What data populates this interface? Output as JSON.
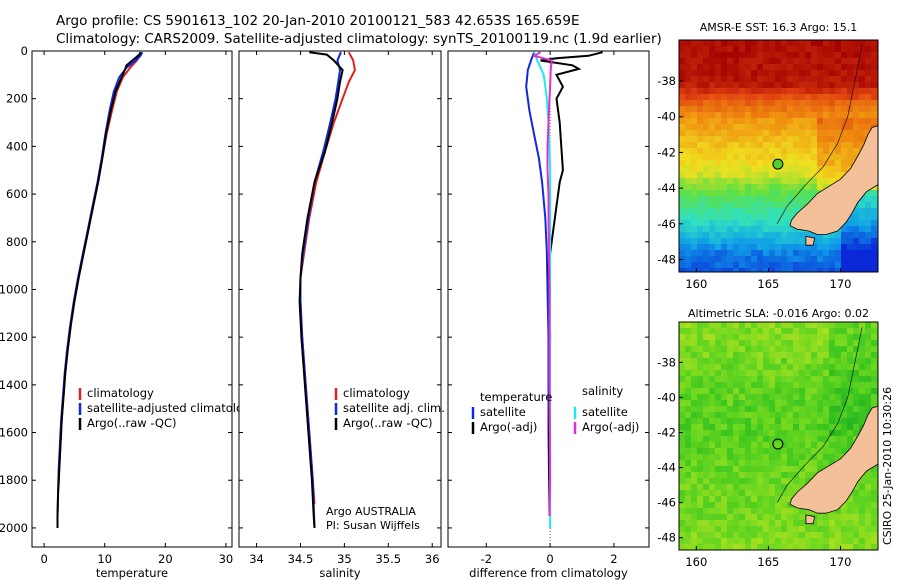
{
  "header": {
    "line1": "Argo profile: CS 5901613_102 20-Jan-2010 20100121_583 42.653S 165.659E",
    "line2": "Climatology: CARS2009. Satellite-adjusted climatology: synTS_20100119.nc (1.9d earlier)"
  },
  "credit": "CSIRO 25-Jan-2010 10:30:26",
  "colors": {
    "climatology": "#e02020",
    "satellite": "#1028e0",
    "argo": "#000000",
    "satellite_salinity": "#20e8f0",
    "argo_salinity": "#e030d0",
    "land": "#f4c09a"
  },
  "chart_data": [
    {
      "type": "line",
      "xlabel": "temperature",
      "ylim": [
        2080,
        0
      ],
      "xlim": [
        -2,
        31
      ],
      "xticks": [
        0,
        10,
        20,
        30
      ],
      "yticks": [
        0,
        200,
        400,
        600,
        800,
        1000,
        1200,
        1400,
        1600,
        1800,
        2000
      ],
      "legend": {
        "placement": "lower-right",
        "entries": [
          "climatology",
          "satellite-adjusted climatology",
          "Argo(..raw -QC)"
        ]
      },
      "series": [
        {
          "name": "climatology",
          "color": "#e02020",
          "points": [
            [
              16.0,
              5
            ],
            [
              15.8,
              20
            ],
            [
              15.3,
              40
            ],
            [
              14.2,
              70
            ],
            [
              13.0,
              110
            ],
            [
              12.0,
              170
            ],
            [
              11.2,
              250
            ],
            [
              10.3,
              350
            ],
            [
              9.6,
              450
            ],
            [
              8.9,
              550
            ],
            [
              8.1,
              650
            ],
            [
              7.3,
              750
            ],
            [
              6.5,
              850
            ],
            [
              5.7,
              950
            ],
            [
              5.0,
              1050
            ],
            [
              4.4,
              1150
            ],
            [
              3.9,
              1250
            ],
            [
              3.5,
              1350
            ],
            [
              3.2,
              1450
            ],
            [
              2.9,
              1550
            ],
            [
              2.7,
              1650
            ],
            [
              2.5,
              1750
            ],
            [
              2.4,
              1820
            ]
          ]
        },
        {
          "name": "satellite-adjusted climatology",
          "color": "#1028e0",
          "points": [
            [
              16.2,
              5
            ],
            [
              15.9,
              20
            ],
            [
              15.1,
              40
            ],
            [
              13.6,
              70
            ],
            [
              12.4,
              110
            ],
            [
              11.5,
              170
            ],
            [
              10.8,
              250
            ],
            [
              10.1,
              350
            ],
            [
              9.5,
              450
            ],
            [
              8.8,
              550
            ],
            [
              8.0,
              650
            ],
            [
              7.2,
              750
            ],
            [
              6.4,
              850
            ],
            [
              5.6,
              950
            ],
            [
              4.9,
              1050
            ],
            [
              4.3,
              1150
            ],
            [
              3.8,
              1250
            ],
            [
              3.4,
              1350
            ],
            [
              3.1,
              1450
            ],
            [
              2.8,
              1550
            ],
            [
              2.6,
              1650
            ],
            [
              2.4,
              1750
            ],
            [
              2.3,
              1850
            ],
            [
              2.2,
              1950
            ],
            [
              2.2,
              2000
            ]
          ]
        },
        {
          "name": "Argo(..raw -QC)",
          "color": "#000000",
          "points": [
            [
              15.9,
              5
            ],
            [
              15.7,
              15
            ],
            [
              14.8,
              35
            ],
            [
              13.6,
              60
            ],
            [
              13.4,
              75
            ],
            [
              12.8,
              110
            ],
            [
              11.8,
              170
            ],
            [
              11.0,
              250
            ],
            [
              10.2,
              350
            ],
            [
              9.6,
              450
            ],
            [
              8.9,
              550
            ],
            [
              8.1,
              650
            ],
            [
              7.3,
              750
            ],
            [
              6.5,
              850
            ],
            [
              5.7,
              950
            ],
            [
              5.0,
              1050
            ],
            [
              4.4,
              1150
            ],
            [
              3.9,
              1250
            ],
            [
              3.5,
              1350
            ],
            [
              3.2,
              1450
            ],
            [
              2.9,
              1550
            ],
            [
              2.7,
              1650
            ],
            [
              2.5,
              1750
            ],
            [
              2.3,
              1850
            ],
            [
              2.2,
              1950
            ],
            [
              2.2,
              2000
            ]
          ]
        }
      ]
    },
    {
      "type": "line",
      "xlabel": "salinity",
      "ylim": [
        2080,
        0
      ],
      "xlim": [
        33.8,
        36.1
      ],
      "xticks": [
        34,
        34.5,
        35,
        35.5,
        36
      ],
      "tick_labels": [
        "34",
        "34.5",
        "35",
        "35.5",
        "36"
      ],
      "legend": {
        "placement": "lower-right",
        "entries": [
          "climatology",
          "satellite adj. clim.",
          "Argo(..raw -QC)"
        ]
      },
      "annotation": [
        "Argo AUSTRALIA",
        "PI: Susan Wijffels"
      ],
      "series": [
        {
          "name": "climatology",
          "color": "#e02020",
          "points": [
            [
              35.05,
              5
            ],
            [
              35.1,
              40
            ],
            [
              35.12,
              80
            ],
            [
              35.05,
              130
            ],
            [
              34.98,
              200
            ],
            [
              34.88,
              300
            ],
            [
              34.78,
              420
            ],
            [
              34.68,
              550
            ],
            [
              34.6,
              700
            ],
            [
              34.54,
              850
            ],
            [
              34.5,
              950
            ],
            [
              34.5,
              1050
            ],
            [
              34.52,
              1200
            ],
            [
              34.56,
              1400
            ],
            [
              34.6,
              1600
            ],
            [
              34.64,
              1800
            ],
            [
              34.66,
              1900
            ]
          ]
        },
        {
          "name": "satellite adj. clim.",
          "color": "#1028e0",
          "points": [
            [
              34.96,
              5
            ],
            [
              34.92,
              40
            ],
            [
              34.95,
              80
            ],
            [
              34.93,
              130
            ],
            [
              34.9,
              200
            ],
            [
              34.84,
              300
            ],
            [
              34.76,
              420
            ],
            [
              34.66,
              550
            ],
            [
              34.59,
              700
            ],
            [
              34.53,
              850
            ],
            [
              34.5,
              950
            ],
            [
              34.5,
              1050
            ],
            [
              34.52,
              1200
            ],
            [
              34.56,
              1400
            ],
            [
              34.6,
              1600
            ],
            [
              34.64,
              1800
            ],
            [
              34.66,
              2000
            ]
          ]
        },
        {
          "name": "Argo(..raw -QC)",
          "color": "#000000",
          "points": [
            [
              34.6,
              5
            ],
            [
              34.8,
              15
            ],
            [
              34.88,
              40
            ],
            [
              34.98,
              80
            ],
            [
              34.95,
              130
            ],
            [
              34.92,
              200
            ],
            [
              34.86,
              300
            ],
            [
              34.78,
              420
            ],
            [
              34.66,
              550
            ],
            [
              34.58,
              700
            ],
            [
              34.52,
              850
            ],
            [
              34.5,
              950
            ],
            [
              34.49,
              1050
            ],
            [
              34.51,
              1200
            ],
            [
              34.55,
              1400
            ],
            [
              34.59,
              1600
            ],
            [
              34.63,
              1800
            ],
            [
              34.65,
              1950
            ],
            [
              34.66,
              2000
            ]
          ]
        }
      ]
    },
    {
      "type": "line",
      "xlabel": "difference from climatology",
      "ylim": [
        2080,
        0
      ],
      "xlim": [
        -3.2,
        3.1
      ],
      "xticks": [
        -2,
        0,
        2
      ],
      "legend": {
        "placement": "lower-center",
        "headers": [
          "temperature",
          "salinity"
        ],
        "entries": [
          "satellite",
          "Argo(-adj)",
          "satellite",
          "Argo(-adj)"
        ]
      },
      "series": [
        {
          "name": "temperature satellite",
          "color": "#1028e0",
          "points": [
            [
              -0.5,
              5
            ],
            [
              -0.6,
              40
            ],
            [
              -0.7,
              80
            ],
            [
              -0.75,
              150
            ],
            [
              -0.65,
              250
            ],
            [
              -0.5,
              350
            ],
            [
              -0.35,
              450
            ],
            [
              -0.25,
              550
            ],
            [
              -0.15,
              700
            ],
            [
              -0.1,
              850
            ],
            [
              -0.08,
              1000
            ],
            [
              -0.05,
              1200
            ],
            [
              -0.05,
              1400
            ],
            [
              -0.05,
              1600
            ],
            [
              -0.03,
              1800
            ],
            [
              -0.02,
              1950
            ]
          ]
        },
        {
          "name": "temperature Argo(-adj)",
          "color": "#000000",
          "points": [
            [
              1.65,
              5
            ],
            [
              1.2,
              20
            ],
            [
              0.2,
              30
            ],
            [
              -0.3,
              40
            ],
            [
              0.7,
              60
            ],
            [
              0.9,
              75
            ],
            [
              0.2,
              100
            ],
            [
              0.4,
              150
            ],
            [
              0.2,
              200
            ],
            [
              0.3,
              300
            ],
            [
              0.35,
              400
            ],
            [
              0.4,
              500
            ],
            [
              0.3,
              550
            ],
            [
              0.2,
              650
            ],
            [
              0.05,
              800
            ],
            [
              -0.05,
              900
            ],
            [
              -0.02,
              1000
            ],
            [
              0.0,
              1200
            ],
            [
              -0.02,
              1400
            ],
            [
              -0.03,
              1600
            ],
            [
              -0.02,
              1800
            ],
            [
              0.0,
              1950
            ]
          ]
        },
        {
          "name": "salinity satellite",
          "color": "#20e8f0",
          "points": [
            [
              -0.5,
              5
            ],
            [
              -0.4,
              40
            ],
            [
              -0.2,
              100
            ],
            [
              -0.1,
              200
            ],
            [
              -0.05,
              300
            ],
            [
              -0.02,
              400
            ],
            [
              0.0,
              500
            ],
            [
              0.0,
              600
            ],
            [
              0.0,
              800
            ],
            [
              0.0,
              1000
            ],
            [
              0.0,
              1200
            ],
            [
              0.0,
              1400
            ],
            [
              0.0,
              1600
            ],
            [
              0.0,
              1800
            ],
            [
              0.0,
              2000
            ]
          ]
        },
        {
          "name": "salinity Argo(-adj)",
          "color": "#e030d0",
          "points": [
            [
              -0.3,
              5
            ],
            [
              -0.5,
              20
            ],
            [
              0.05,
              40
            ],
            [
              0.02,
              80
            ],
            [
              0.0,
              150
            ],
            [
              -0.02,
              200
            ],
            [
              -0.05,
              300
            ],
            [
              -0.08,
              400
            ],
            [
              -0.08,
              500
            ],
            [
              -0.05,
              600
            ],
            [
              -0.05,
              700
            ],
            [
              -0.03,
              900
            ],
            [
              -0.02,
              1000
            ],
            [
              -0.02,
              1200
            ],
            [
              -0.02,
              1400
            ],
            [
              -0.01,
              1600
            ],
            [
              0.0,
              1800
            ],
            [
              -0.02,
              1950
            ]
          ]
        }
      ]
    },
    {
      "type": "heatmap",
      "title": "AMSR-E SST: 16.3 Argo: 15.1",
      "xlim": [
        158.8,
        172.6
      ],
      "ylim": [
        -48.7,
        -35.7
      ],
      "xticks": [
        160,
        165,
        170
      ],
      "yticks": [
        -38,
        -40,
        -42,
        -44,
        -46,
        -48
      ],
      "marker": [
        165.659,
        -42.653
      ],
      "colorscale": [
        "#0a28d8",
        "#10a0e8",
        "#30e0c0",
        "#60e040",
        "#f0e020",
        "#f09010",
        "#e04010",
        "#a00000"
      ],
      "fields": [
        {
          "y": -35.7,
          "value": 0.97
        },
        {
          "y": -38.0,
          "value": 0.95
        },
        {
          "y": -39.0,
          "value": 0.8
        },
        {
          "y": -40.0,
          "value": 0.7
        },
        {
          "y": -41.5,
          "value": 0.62
        },
        {
          "y": -43.0,
          "value": 0.55
        },
        {
          "y": -43.6,
          "value": 0.47
        },
        {
          "y": -44.5,
          "value": 0.38
        },
        {
          "y": -46.0,
          "value": 0.25
        },
        {
          "y": -47.5,
          "value": 0.1
        },
        {
          "y": -48.7,
          "value": 0.05
        }
      ]
    },
    {
      "type": "heatmap",
      "title": "Altimetric SLA: -0.016 Argo: 0.02",
      "xlim": [
        158.8,
        172.6
      ],
      "ylim": [
        -48.7,
        -35.7
      ],
      "xticks": [
        160,
        165,
        170
      ],
      "yticks": [
        -38,
        -40,
        -42,
        -44,
        -46,
        -48
      ],
      "marker": [
        165.659,
        -42.653
      ],
      "colorscale": [
        "#20b020",
        "#40c820",
        "#70d820",
        "#a8e020",
        "#d0e030"
      ],
      "fields": [
        {
          "y": -35.7,
          "value": 0.6
        },
        {
          "y": -38.0,
          "value": 0.5
        },
        {
          "y": -40.0,
          "value": 0.4
        },
        {
          "y": -42.0,
          "value": 0.35
        },
        {
          "y": -44.0,
          "value": 0.45
        },
        {
          "y": -46.0,
          "value": 0.5
        },
        {
          "y": -48.7,
          "value": 0.6
        }
      ]
    }
  ]
}
